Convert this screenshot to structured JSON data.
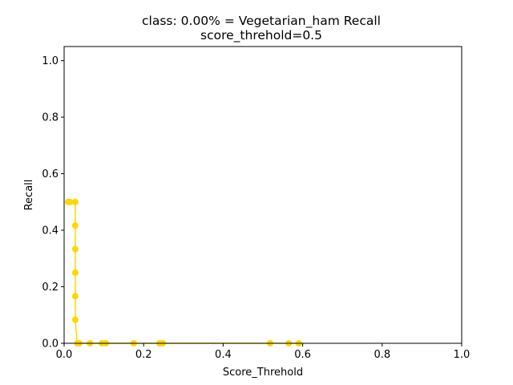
{
  "chart_data": {
    "type": "line",
    "title_line1": "class: 0.00% = Vegetarian_ham Recall",
    "title_line2": "score_threhold=0.5",
    "xlabel": "Score_Threhold",
    "ylabel": "Recall",
    "xlim": [
      0.0,
      1.0
    ],
    "ylim": [
      0.0,
      1.05
    ],
    "xticks": [
      "0.0",
      "0.2",
      "0.4",
      "0.6",
      "0.8",
      "1.0"
    ],
    "yticks": [
      "0.0",
      "0.2",
      "0.4",
      "0.6",
      "0.8",
      "1.0"
    ],
    "grid": false,
    "color": "#FFD700",
    "series": [
      {
        "x": [
          0.01,
          0.015,
          0.028,
          0.028,
          0.028,
          0.028,
          0.028,
          0.028,
          0.033,
          0.038,
          0.065,
          0.095,
          0.105,
          0.175,
          0.24,
          0.248,
          0.518,
          0.565,
          0.59
        ],
        "y": [
          0.5,
          0.5,
          0.5,
          0.4167,
          0.3333,
          0.25,
          0.1667,
          0.0833,
          0.0,
          0.0,
          0.0,
          0.0,
          0.0,
          0.0,
          0.0,
          0.0,
          0.0,
          0.0,
          0.0
        ]
      }
    ]
  }
}
